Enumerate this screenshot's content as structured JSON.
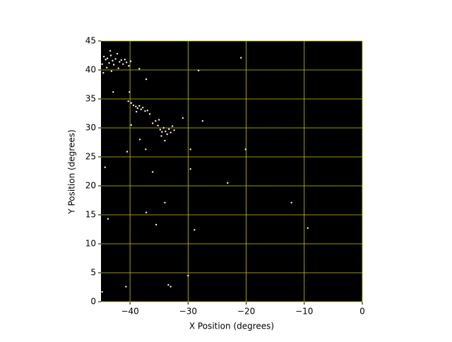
{
  "chart_data": {
    "type": "scatter",
    "xlabel": "X Position (degrees)",
    "ylabel": "Y Position (degrees)",
    "series": [
      {
        "color": "#fff3e0",
        "x": [
          -44.5,
          -44.2,
          -43.9,
          -43.6,
          -43.3,
          -43.0,
          -42.8,
          -42.5,
          -42.2,
          -41.8,
          -41.5,
          -41.2,
          -40.9,
          -40.6,
          -40.2,
          -44.8,
          -44.0,
          -43.4,
          -42.0,
          -39.9,
          -44.6,
          -43.2,
          -39.8,
          -39.4,
          -39.0,
          -38.7,
          -38.4,
          -38.1,
          -37.8,
          -37.4,
          -38.9,
          -37.0,
          -40.3,
          -36.6,
          -35.6,
          -35.2,
          -34.8,
          -34.5,
          -34.2,
          -33.9,
          -33.6,
          -33.3,
          -33.0,
          -34.6,
          -35.0,
          -32.7,
          -34.0,
          -36.1,
          -32.4,
          -20.9,
          -28.2,
          -20.1,
          -23.2,
          -12.2,
          -9.4,
          -30.0,
          -33.4,
          -33.0,
          -40.7,
          -44.3,
          -36.1,
          -34.0,
          -37.2,
          -29.6,
          -37.3,
          -27.5,
          -30.9,
          -28.9,
          -35.5,
          -43.8,
          -44.8,
          -29.6,
          -38.3,
          -40.5,
          -39.8,
          -37.2,
          -38.4,
          -42.9,
          -40.1
        ],
        "values": [
          42.3,
          41.8,
          42.0,
          41.2,
          42.5,
          41.6,
          40.9,
          41.9,
          42.8,
          41.4,
          41.7,
          41.0,
          41.8,
          41.3,
          40.7,
          41.0,
          40.4,
          43.3,
          40.3,
          41.5,
          39.5,
          39.8,
          34.3,
          33.9,
          33.7,
          33.4,
          33.8,
          33.2,
          33.5,
          32.9,
          32.8,
          33.0,
          34.6,
          32.4,
          31.2,
          30.4,
          29.7,
          29.3,
          30.0,
          29.4,
          28.9,
          29.8,
          29.2,
          28.6,
          31.4,
          30.3,
          27.8,
          30.8,
          29.6,
          42.1,
          39.9,
          26.3,
          20.5,
          17.1,
          12.7,
          4.5,
          2.9,
          2.6,
          2.6,
          23.2,
          22.4,
          17.1,
          15.4,
          26.3,
          26.3,
          31.2,
          31.7,
          12.4,
          13.3,
          14.3,
          1.7,
          22.9,
          28.0,
          25.9,
          30.5,
          38.4,
          40.2,
          36.2,
          36.2
        ]
      }
    ],
    "xlim": [
      -45,
      0
    ],
    "ylim": [
      0,
      45
    ],
    "xticks": [
      {
        "value": -40,
        "label": "−40"
      },
      {
        "value": -30,
        "label": "−30"
      },
      {
        "value": -20,
        "label": "−20"
      },
      {
        "value": -10,
        "label": "−10"
      },
      0
    ],
    "yticks": [
      0,
      5,
      10,
      15,
      20,
      25,
      30,
      35,
      40,
      45
    ],
    "grid": true,
    "grid_color": "#c8c800",
    "background": "#000000"
  }
}
